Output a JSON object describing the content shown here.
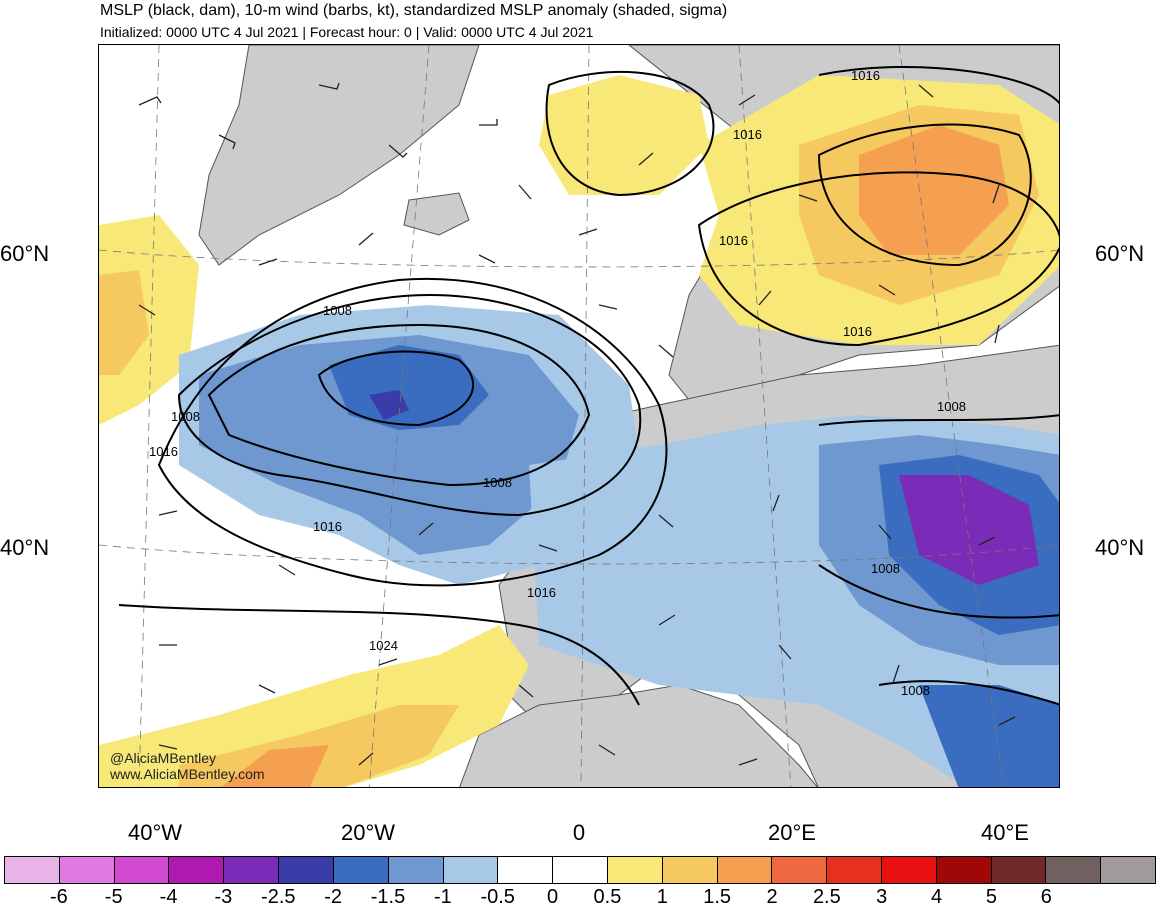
{
  "header": {
    "title": "MSLP (black, dam), 10-m wind (barbs, kt), standardized MSLP anomaly (shaded, sigma)",
    "subtitle": "Initialized: 0000 UTC 4 Jul 2021 | Forecast hour: 0 | Valid: 0000 UTC 4 Jul 2021"
  },
  "axes": {
    "lat_left": [
      "60°N",
      "40°N"
    ],
    "lat_right": [
      "60°N",
      "40°N"
    ],
    "lon": [
      "40°W",
      "20°W",
      "0",
      "20°E",
      "40°E"
    ]
  },
  "contour_labels": [
    "1016",
    "1016",
    "1016",
    "1016",
    "1008",
    "1008",
    "1016",
    "1008",
    "1016",
    "1016",
    "1024",
    "1008",
    "1008",
    "1008"
  ],
  "credit": {
    "handle": "@AliciaMBentley",
    "site": "www.AliciaMBentley.com"
  },
  "colorbar": {
    "colors": [
      "#e8b4e8",
      "#e07ae0",
      "#d24ad2",
      "#b01ab0",
      "#7a2cb8",
      "#3c3ca8",
      "#3a6cc0",
      "#6f98d0",
      "#a8c8e8",
      "#ffffff",
      "#ffffff",
      "#f8e878",
      "#f5c860",
      "#f5a050",
      "#f06840",
      "#e83020",
      "#e81010",
      "#a00808",
      "#702828",
      "#706060",
      "#a09a9a"
    ],
    "ticks": [
      "-6",
      "-5",
      "-4",
      "-3",
      "-2.5",
      "-2",
      "-1.5",
      "-1",
      "-0.5",
      "0",
      "0.5",
      "1",
      "1.5",
      "2",
      "2.5",
      "3",
      "4",
      "5",
      "6"
    ]
  },
  "colors": {
    "land": "#cccccc",
    "ocean": "#ffffff"
  }
}
